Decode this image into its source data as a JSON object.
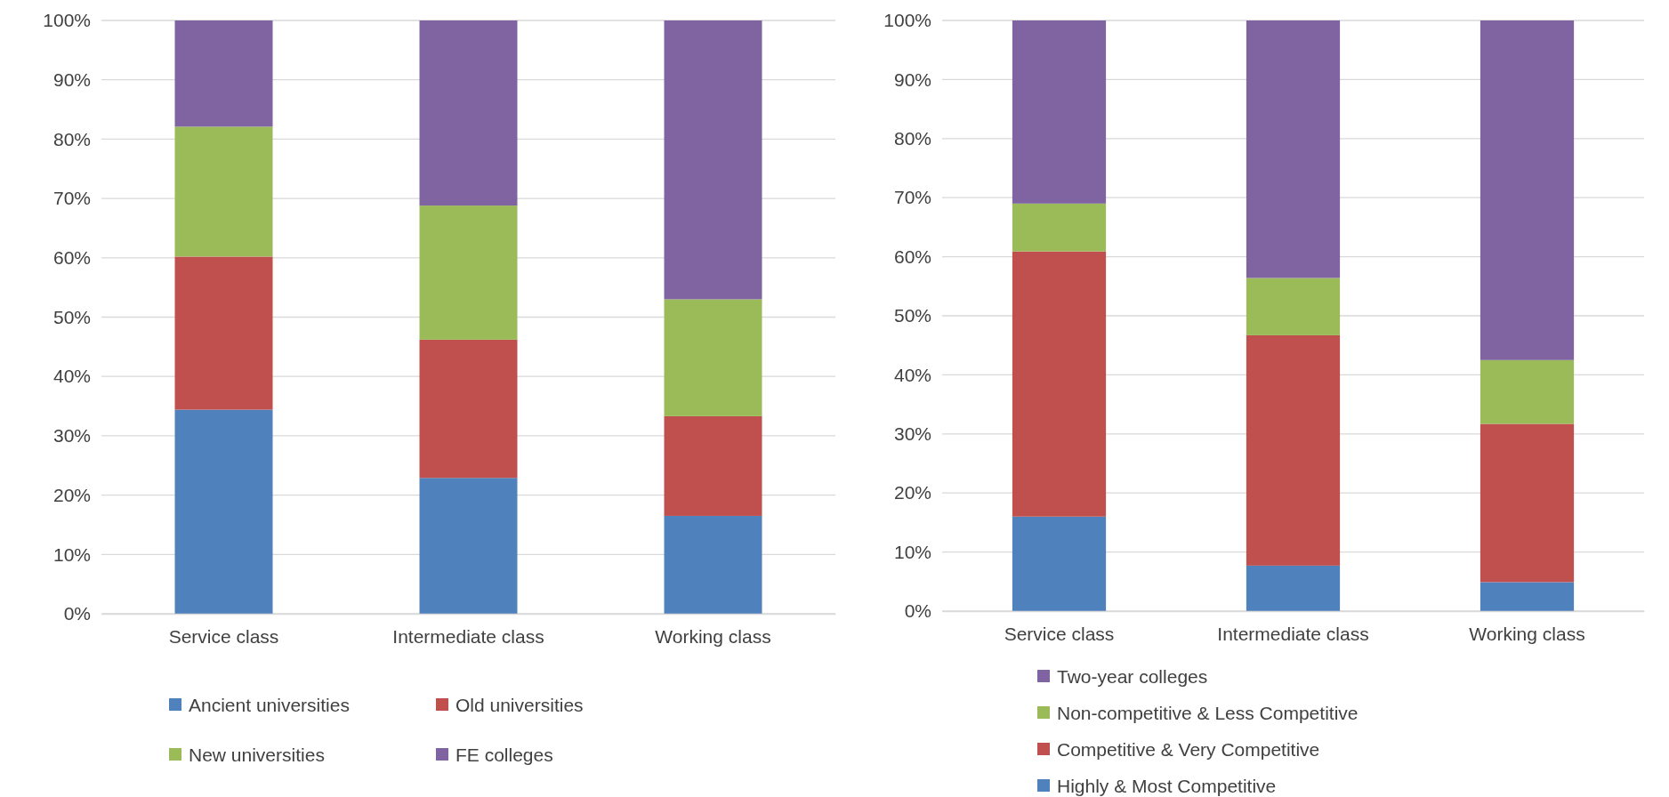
{
  "chart_data": [
    {
      "type": "bar",
      "stacked": true,
      "categories": [
        "Service class",
        "Intermediate class",
        "Working class"
      ],
      "series": [
        {
          "name": "Ancient universities",
          "color": "#4f81bd",
          "values": [
            34.4,
            22.9,
            16.5
          ]
        },
        {
          "name": "Old universities",
          "color": "#c0504d",
          "values": [
            25.8,
            23.3,
            16.8
          ]
        },
        {
          "name": "New universities",
          "color": "#9bbb59",
          "values": [
            21.9,
            22.6,
            19.7
          ]
        },
        {
          "name": "FE colleges",
          "color": "#8064a2",
          "values": [
            17.9,
            31.2,
            47.0
          ]
        }
      ],
      "ylim": [
        0,
        100
      ],
      "yticks": [
        {
          "value": 0,
          "label": "0%"
        },
        {
          "value": 10,
          "label": "10%"
        },
        {
          "value": 20,
          "label": "20%"
        },
        {
          "value": 30,
          "label": "30%"
        },
        {
          "value": 40,
          "label": "40%"
        },
        {
          "value": 50,
          "label": "50%"
        },
        {
          "value": 60,
          "label": "60%"
        },
        {
          "value": 70,
          "label": "70%"
        },
        {
          "value": 80,
          "label": "80%"
        },
        {
          "value": 90,
          "label": "90%"
        },
        {
          "value": 100,
          "label": "100%"
        }
      ],
      "grid": "y",
      "legend": "bottom"
    },
    {
      "type": "bar",
      "stacked": true,
      "categories": [
        "Service class",
        "Intermediate class",
        "Working class"
      ],
      "series": [
        {
          "name": "Highly & Most Competitive",
          "color": "#4f81bd",
          "values": [
            16.0,
            7.7,
            4.9
          ]
        },
        {
          "name": "Competitive & Very Competitive",
          "color": "#c0504d",
          "values": [
            44.9,
            39.0,
            26.8
          ]
        },
        {
          "name": "Non-competitive & Less Competitive",
          "color": "#9bbb59",
          "values": [
            8.1,
            9.7,
            10.8
          ]
        },
        {
          "name": "Two-year colleges",
          "color": "#8064a2",
          "values": [
            31.0,
            43.6,
            57.5
          ]
        }
      ],
      "ylim": [
        0,
        100
      ],
      "yticks": [
        {
          "value": 0,
          "label": "0%"
        },
        {
          "value": 10,
          "label": "10%"
        },
        {
          "value": 20,
          "label": "20%"
        },
        {
          "value": 30,
          "label": "30%"
        },
        {
          "value": 40,
          "label": "40%"
        },
        {
          "value": 50,
          "label": "50%"
        },
        {
          "value": 60,
          "label": "60%"
        },
        {
          "value": 70,
          "label": "70%"
        },
        {
          "value": 80,
          "label": "80%"
        },
        {
          "value": 90,
          "label": "90%"
        },
        {
          "value": 100,
          "label": "100%"
        }
      ],
      "grid": "y",
      "legend": "bottom"
    }
  ]
}
